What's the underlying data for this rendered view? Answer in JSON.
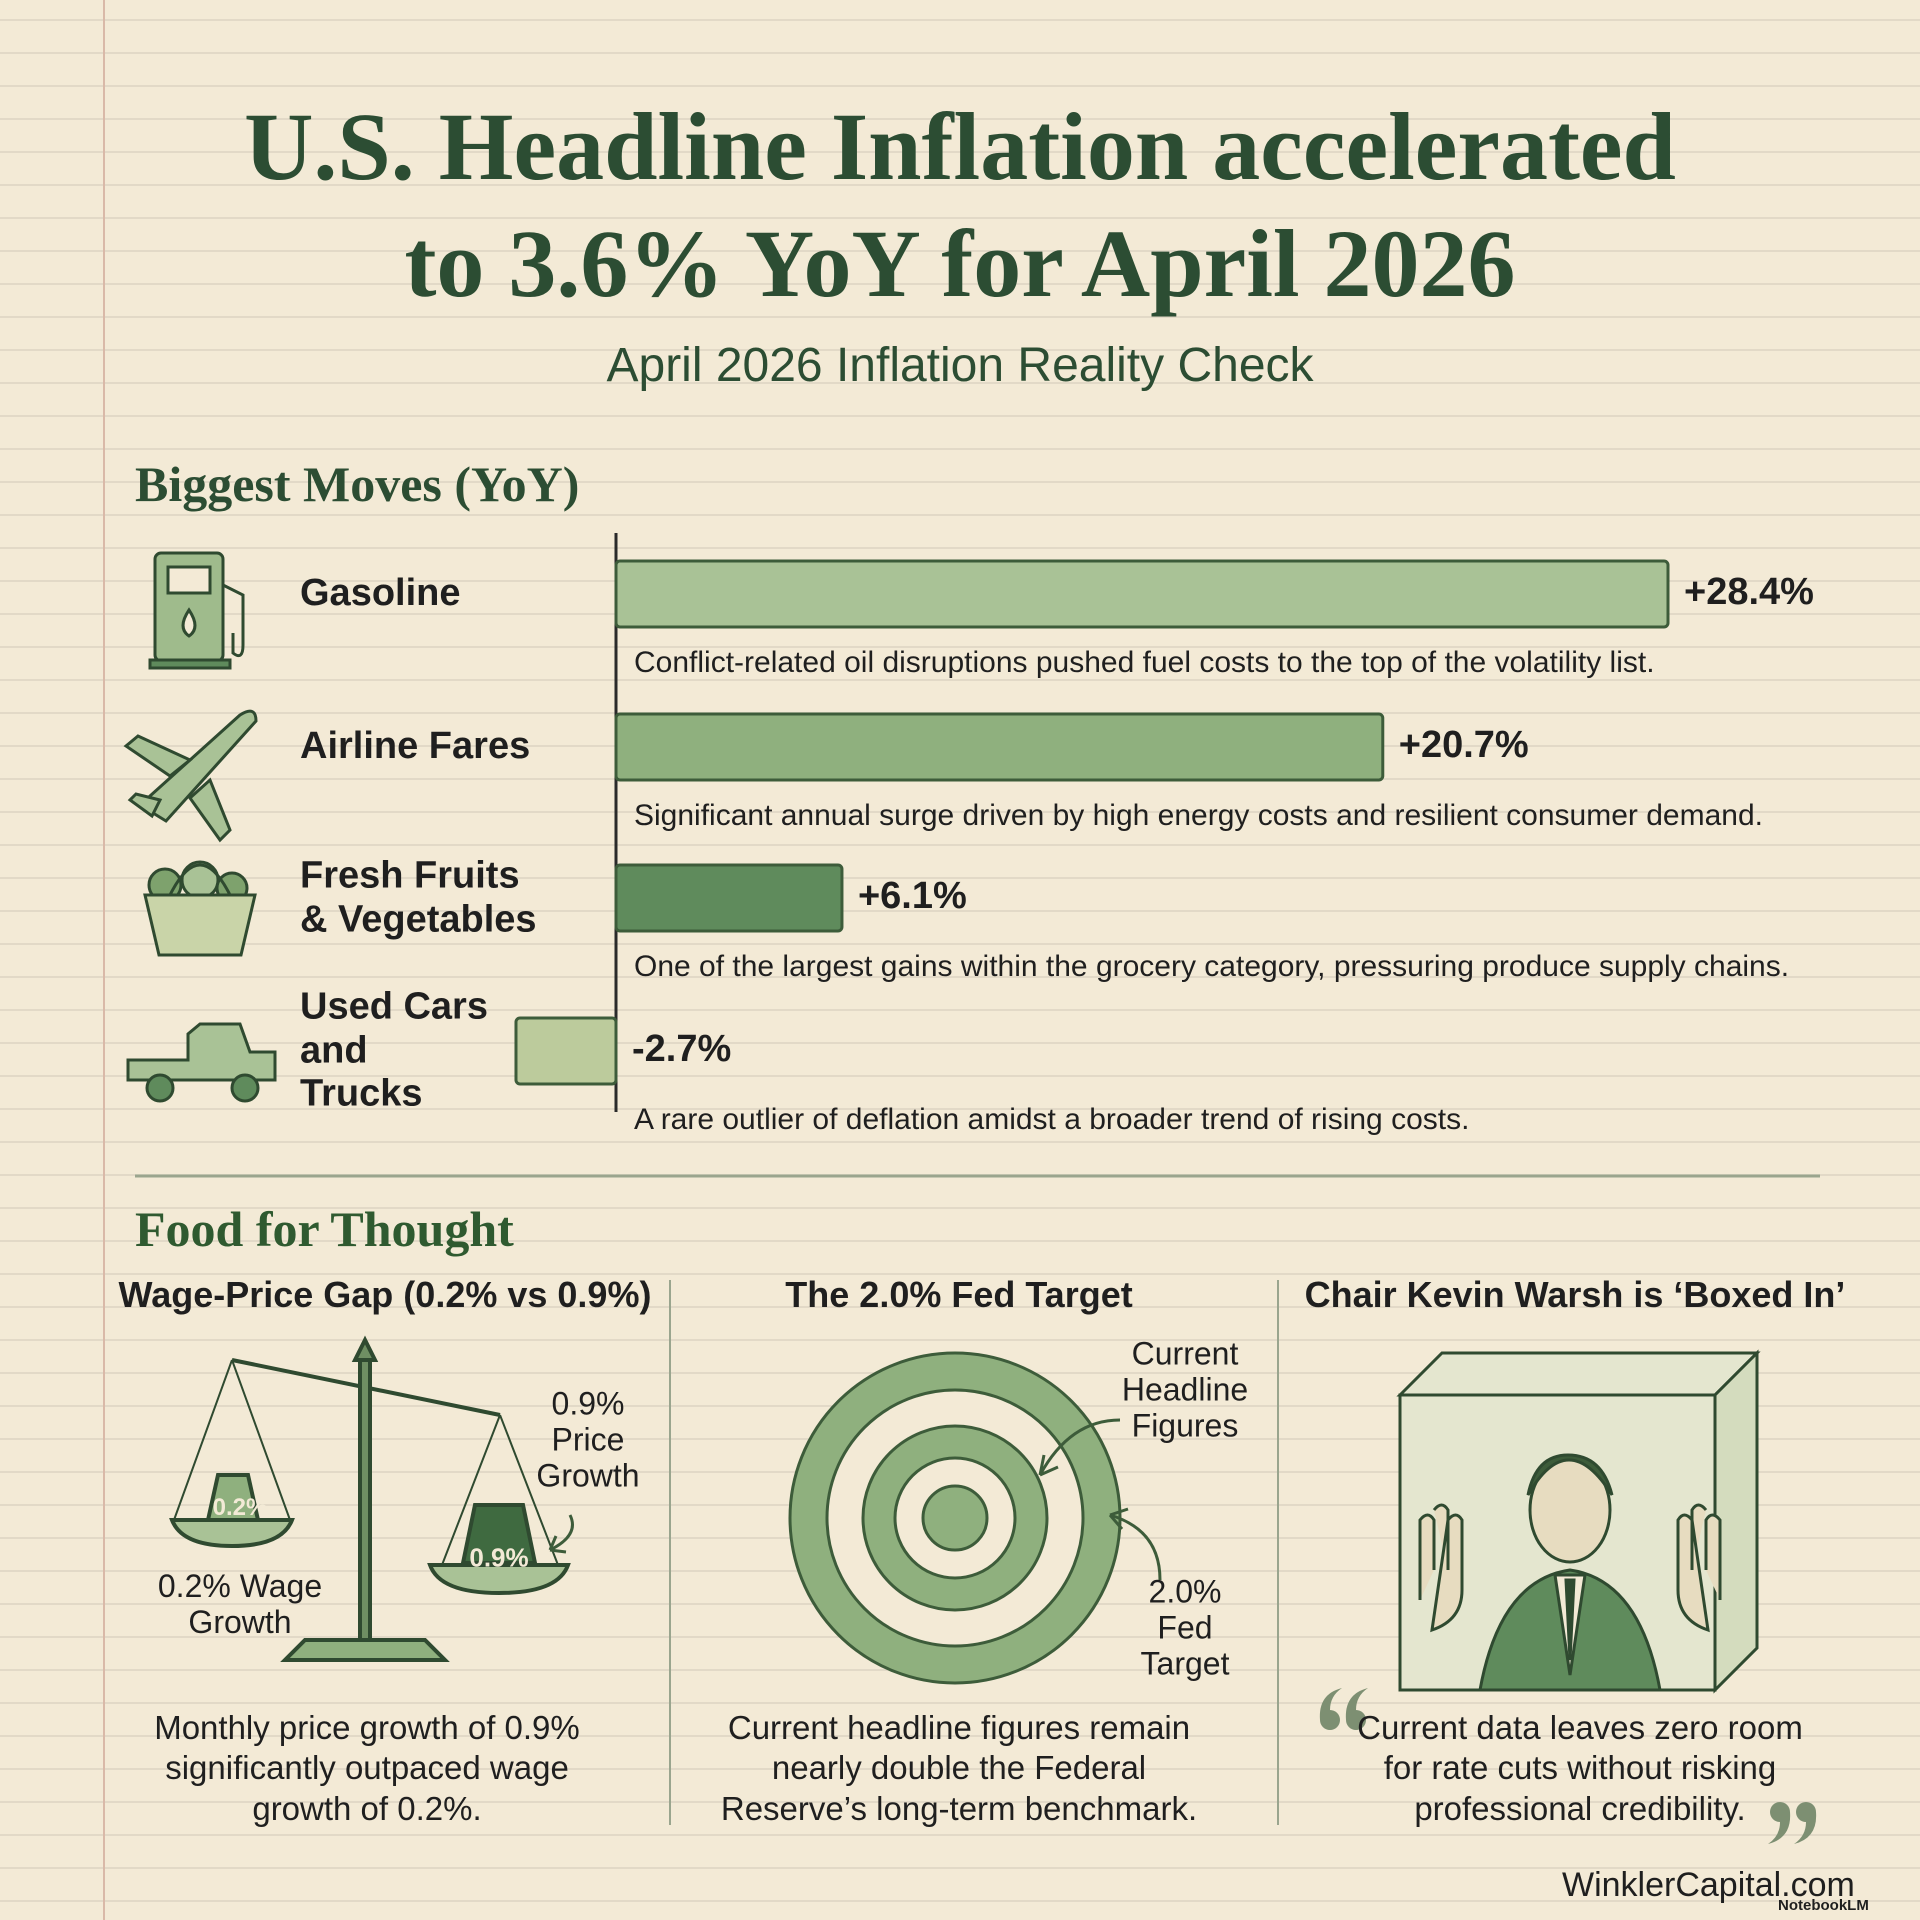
{
  "title": "U.S. Headline Inflation accelerated to 3.6% YoY for April 2026",
  "subtitle": "April 2026 Inflation Reality Check",
  "chart_data": {
    "type": "bar",
    "orientation": "horizontal",
    "title": "Biggest Moves (YoY)",
    "categories": [
      "Gasoline",
      "Airline Fares",
      "Fresh Fruits & Vegetables",
      "Used Cars and Trucks"
    ],
    "values": [
      28.4,
      20.7,
      6.1,
      -2.7
    ],
    "value_labels": [
      "+28.4%",
      "+20.7%",
      "+6.1%",
      "-2.7%"
    ],
    "annotations": [
      "Conflict-related oil disruptions pushed fuel costs to the top of the volatility list.",
      "Significant annual surge driven by high energy costs and resilient consumer demand.",
      "One of the largest gains within the grocery category, pressuring produce supply chains.",
      "A rare outlier of deflation amidst a broader trend of rising costs."
    ],
    "colors": [
      "#a9c296",
      "#8fb07e",
      "#5f8b5c",
      "#bccb9c"
    ]
  },
  "food_for_thought": {
    "heading": "Food for Thought",
    "columns": [
      {
        "title": "Wage-Price Gap (0.2% vs 0.9%)",
        "labels": [
          "0.2%",
          "0.9%",
          "0.9% Price Growth",
          "0.2% Wage Growth"
        ],
        "text": "Monthly price growth of 0.9% significantly outpaced wage growth of 0.2%."
      },
      {
        "title": "The 2.0% Fed Target",
        "labels": [
          "Current Headline Figures",
          "2.0% Fed Target"
        ],
        "text": "Current headline figures remain nearly double the Federal Reserve’s long-term benchmark."
      },
      {
        "title": "Chair Kevin Warsh is ‘Boxed In’",
        "text": "Current data leaves zero room for rate cuts without risking professional credibility."
      }
    ]
  },
  "footer": {
    "site": "WinklerCapital.com",
    "badge": "NotebookLM"
  }
}
